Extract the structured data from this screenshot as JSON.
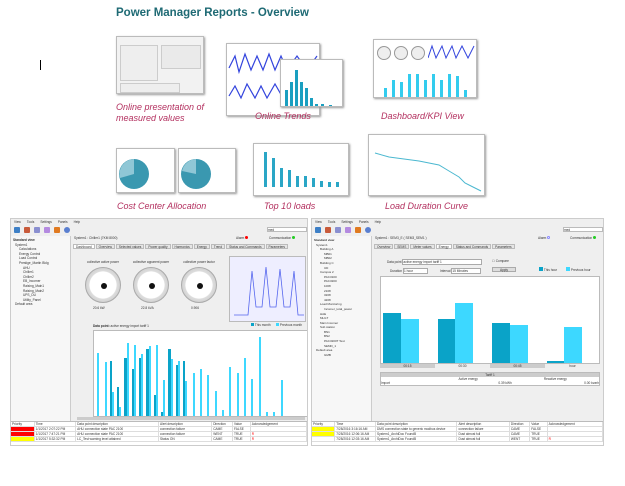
{
  "title": "Power Manager Reports - Overview",
  "captions": {
    "online_values": [
      "Online presentation of",
      "measured values"
    ],
    "online_trends": "Online Trends",
    "dashboard": "Dashboard/KPI View",
    "cost_center": "Cost Center Allocation",
    "top10": "Top 10 loads",
    "load_duration": "Load Duration Curve"
  },
  "left_app": {
    "menu": [
      "View",
      "Tools",
      "Settings",
      "Panels",
      "Help"
    ],
    "search": "med",
    "tree_header": "Standard view",
    "tree": [
      "System1",
      "Calculations",
      "Energy Control",
      "Load Control",
      "Prestige_Martin Bldg",
      "AHU",
      "Chiller1",
      "Chiller2",
      "EB_Incomer",
      "Raising_Main1",
      "Raising_Main2",
      "UPS_DU",
      "Utility_Panel",
      "Default area"
    ],
    "path": "System1 : Chiller1 (7KM 8000)",
    "alarm_label": "Alarm",
    "comm_label": "Communication",
    "tabs": [
      "Dashboard",
      "Overview",
      "Selected values",
      "Power quality",
      "Harmonics",
      "Energy",
      "Trend",
      "Status and Commands",
      "Parameters"
    ],
    "gauges": [
      "collective active power",
      "collective apparent power",
      "collective power factor"
    ],
    "gauge_values": [
      "20.6 kW",
      "22.8 kVA",
      "0.906"
    ],
    "data_point_label": "Data point:",
    "data_point": "active energy import tariff 1",
    "legend": [
      "This month",
      "Previous month"
    ],
    "bars_this": [
      0,
      0,
      70,
      37,
      73,
      60,
      73,
      85,
      27,
      5,
      85,
      65,
      70,
      0,
      0,
      0,
      0,
      0,
      0,
      0,
      0,
      0,
      0,
      0,
      0,
      0,
      0,
      0,
      0,
      0
    ],
    "bars_prev": [
      80,
      68,
      30,
      12,
      92,
      90,
      78,
      88,
      90,
      45,
      72,
      70,
      44,
      55,
      60,
      52,
      32,
      8,
      62,
      55,
      74,
      47,
      100,
      5,
      5,
      46,
      0,
      0,
      0,
      0
    ],
    "alarm_headers": [
      "Priority",
      "Time",
      "Data point description",
      "Alert description",
      "Direction",
      "Value",
      "Acknowledgement"
    ],
    "alarms": [
      {
        "color": "#ff0000",
        "time": "1/1/2017 2:07:22 PM",
        "desc": "AHU connection state PAC 2100",
        "alert": "connection failure",
        "dir": "CAME",
        "value": "FALSE",
        "ack": ""
      },
      {
        "color": "#ff0000",
        "time": "1/1/2017 7:47:21 PM",
        "desc": "AHU connection state PAC 2100",
        "alert": "connection failure",
        "dir": "WENT",
        "value": "TRUE",
        "ack": "R"
      },
      {
        "color": "#ffff00",
        "time": "1/1/2017 5:32:32 PM",
        "desc": "LC_Test warning level attained",
        "alert": "Status ON",
        "dir": "CAME",
        "value": "TRUE",
        "ack": "R"
      }
    ]
  },
  "right_app": {
    "menu": [
      "View",
      "Tools",
      "Settings",
      "Panels",
      "Help"
    ],
    "search": "med",
    "tree_header": "Standard view",
    "tree": [
      "System1",
      "Building A",
      "MB01",
      "MB02",
      "Building C",
      "UD",
      "Campus 2",
      "PAC3100",
      "PAC3200",
      "1008",
      "2108",
      "3208",
      "4208",
      "Load Monitoring",
      "Incomer_total_power",
      "HAE",
      "MLGT",
      "Main Incomer",
      "Sub station",
      "BN1",
      "BN2",
      "PAC3200T Test",
      "SEMD_1",
      "Default area",
      "GMB"
    ],
    "path": "System1 : SEM3_E ( SEM3_SEM1 )",
    "alarm_label": "Alarm",
    "comm_label": "Communication",
    "tabs": [
      "Overview",
      "SEMS",
      "Meter values",
      "Energy",
      "Status and Commands",
      "Parameters"
    ],
    "data_point_label": "Data point",
    "data_point": "active energy import tariff 1",
    "compare": "Compare",
    "duration_label": "Duration",
    "duration": "1 hour",
    "interval_label": "Interval",
    "interval": "15 Minutes",
    "apply": "Apply",
    "legend": [
      "This hour",
      "Previous hour"
    ],
    "bars_this": [
      62,
      55,
      50,
      2
    ],
    "bars_prev": [
      55,
      75,
      48,
      45
    ],
    "x_labels": [
      "00:15",
      "00:30",
      "00:45",
      "hour"
    ],
    "tariff_title": "Tariff 1",
    "tariff_cols": [
      "Active energy",
      "Reactive energy"
    ],
    "tariff_row": [
      "Import",
      "0.39 kWh",
      "0.00 kvarh"
    ],
    "alarm_headers": [
      "Priority",
      "Time",
      "Data point description",
      "Alert description",
      "Direction",
      "Value",
      "Acknowledgement"
    ],
    "alarms": [
      {
        "color": "#ffff00",
        "time": "7/28/2016 3:16:16 AM",
        "desc": "DMS connection state to generic modbus device",
        "alert": "connection failure",
        "dir": "CAME",
        "value": "FALSE",
        "ack": ""
      },
      {
        "color": "#ffff00",
        "time": "7/28/2016 12:06:16 AM",
        "desc": "System1_ArchiDoc FoundB",
        "alert": "Dust almost full",
        "dir": "CAME",
        "value": "TRUE",
        "ack": ""
      },
      {
        "color": "#ffffff",
        "time": "7/28/2016 12:03:16 AM",
        "desc": "System1_ArchiDoc FoundB",
        "alert": "Dust almost full",
        "dir": "WENT",
        "value": "TRUE",
        "ack": "R"
      }
    ]
  },
  "colors": {
    "title": "#1e6a74",
    "caption": "#b3305f",
    "bar_dark": "#0aa3c8",
    "bar_light": "#3dd8ff"
  }
}
